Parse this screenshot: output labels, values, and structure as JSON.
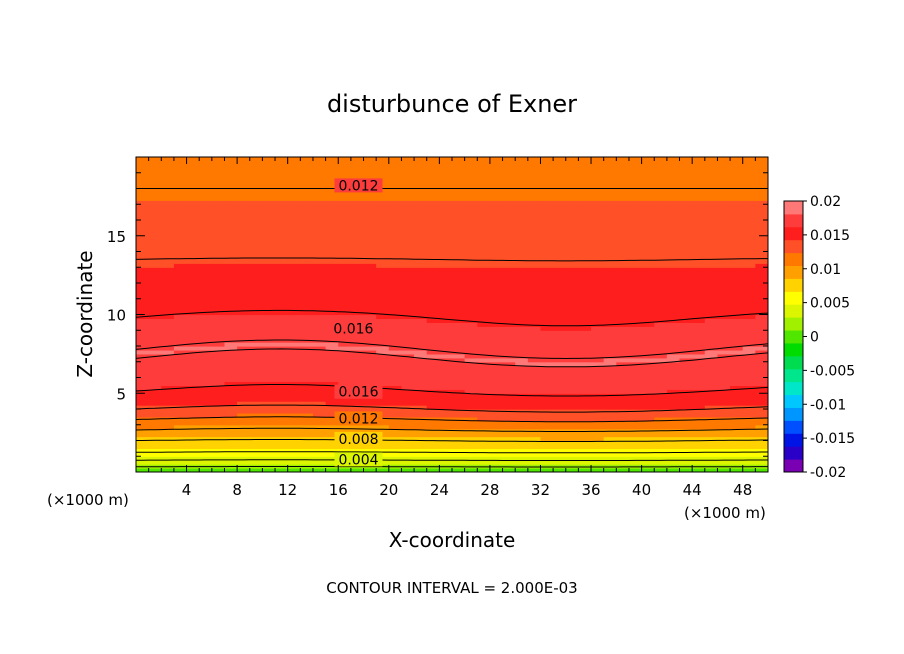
{
  "chart_data": {
    "type": "contour",
    "title": "disturbunce of Exner",
    "xlabel": "X-coordinate",
    "ylabel": "Z-coordinate",
    "x_unit_left": "(×1000 m)",
    "x_unit_right": "(×1000 m)",
    "footer": "CONTOUR INTERVAL = 2.000E-03",
    "xlim": [
      0,
      50
    ],
    "ylim": [
      0,
      20
    ],
    "x_ticks": [
      "4",
      "8",
      "12",
      "16",
      "20",
      "24",
      "28",
      "32",
      "36",
      "40",
      "44",
      "48"
    ],
    "y_ticks": [
      "5",
      "10",
      "15"
    ],
    "x_tick_values": [
      4,
      8,
      12,
      16,
      20,
      24,
      28,
      32,
      36,
      40,
      44,
      48
    ],
    "y_tick_values": [
      5,
      10,
      15
    ],
    "contour_interval": 0.002,
    "colorbar": {
      "range": [
        -0.02,
        0.02
      ],
      "labels": [
        "0.02",
        "0.015",
        "0.01",
        "0.005",
        "0",
        "-0.005",
        "-0.01",
        "-0.015",
        "-0.02"
      ],
      "label_values": [
        0.02,
        0.015,
        0.01,
        0.005,
        0,
        -0.005,
        -0.01,
        -0.015,
        -0.02
      ],
      "colors": [
        "#7a00b4",
        "#2a00c8",
        "#0014e6",
        "#0050ff",
        "#0096ff",
        "#00c8ff",
        "#00e6c8",
        "#00e68c",
        "#00dc50",
        "#00dc00",
        "#50e600",
        "#a0f000",
        "#dcf500",
        "#ffff00",
        "#ffd200",
        "#ffa000",
        "#ff7800",
        "#ff5028",
        "#ff1e1e",
        "#ff3c3c",
        "#ff7878"
      ]
    },
    "contour_labels": [
      {
        "text": "0.012",
        "x": 17.6,
        "y": 18.2
      },
      {
        "text": "0.016",
        "x": 17.2,
        "y": 9.1
      },
      {
        "text": "0.016",
        "x": 17.6,
        "y": 5.1
      },
      {
        "text": "0.012",
        "x": 17.6,
        "y": 3.4
      },
      {
        "text": "0.008",
        "x": 17.6,
        "y": 2.1
      },
      {
        "text": "0.004",
        "x": 17.6,
        "y": 0.8
      }
    ],
    "field_profile": [
      {
        "z": 0.0,
        "value": 0.0
      },
      {
        "z": 0.5,
        "value": 0.003
      },
      {
        "z": 1.0,
        "value": 0.005
      },
      {
        "z": 1.5,
        "value": 0.007
      },
      {
        "z": 2.0,
        "value": 0.008
      },
      {
        "z": 2.5,
        "value": 0.0095
      },
      {
        "z": 3.0,
        "value": 0.011
      },
      {
        "z": 3.5,
        "value": 0.0125
      },
      {
        "z": 4.0,
        "value": 0.014
      },
      {
        "z": 4.5,
        "value": 0.015
      },
      {
        "z": 5.0,
        "value": 0.0158
      },
      {
        "z": 5.5,
        "value": 0.0165
      },
      {
        "z": 6.5,
        "value": 0.0175
      },
      {
        "z": 7.5,
        "value": 0.0182
      },
      {
        "z": 8.5,
        "value": 0.0175
      },
      {
        "z": 10.0,
        "value": 0.0158
      },
      {
        "z": 12.0,
        "value": 0.015
      },
      {
        "z": 13.5,
        "value": 0.014
      },
      {
        "z": 16.0,
        "value": 0.013
      },
      {
        "z": 18.0,
        "value": 0.012
      },
      {
        "z": 20.0,
        "value": 0.0115
      }
    ]
  }
}
